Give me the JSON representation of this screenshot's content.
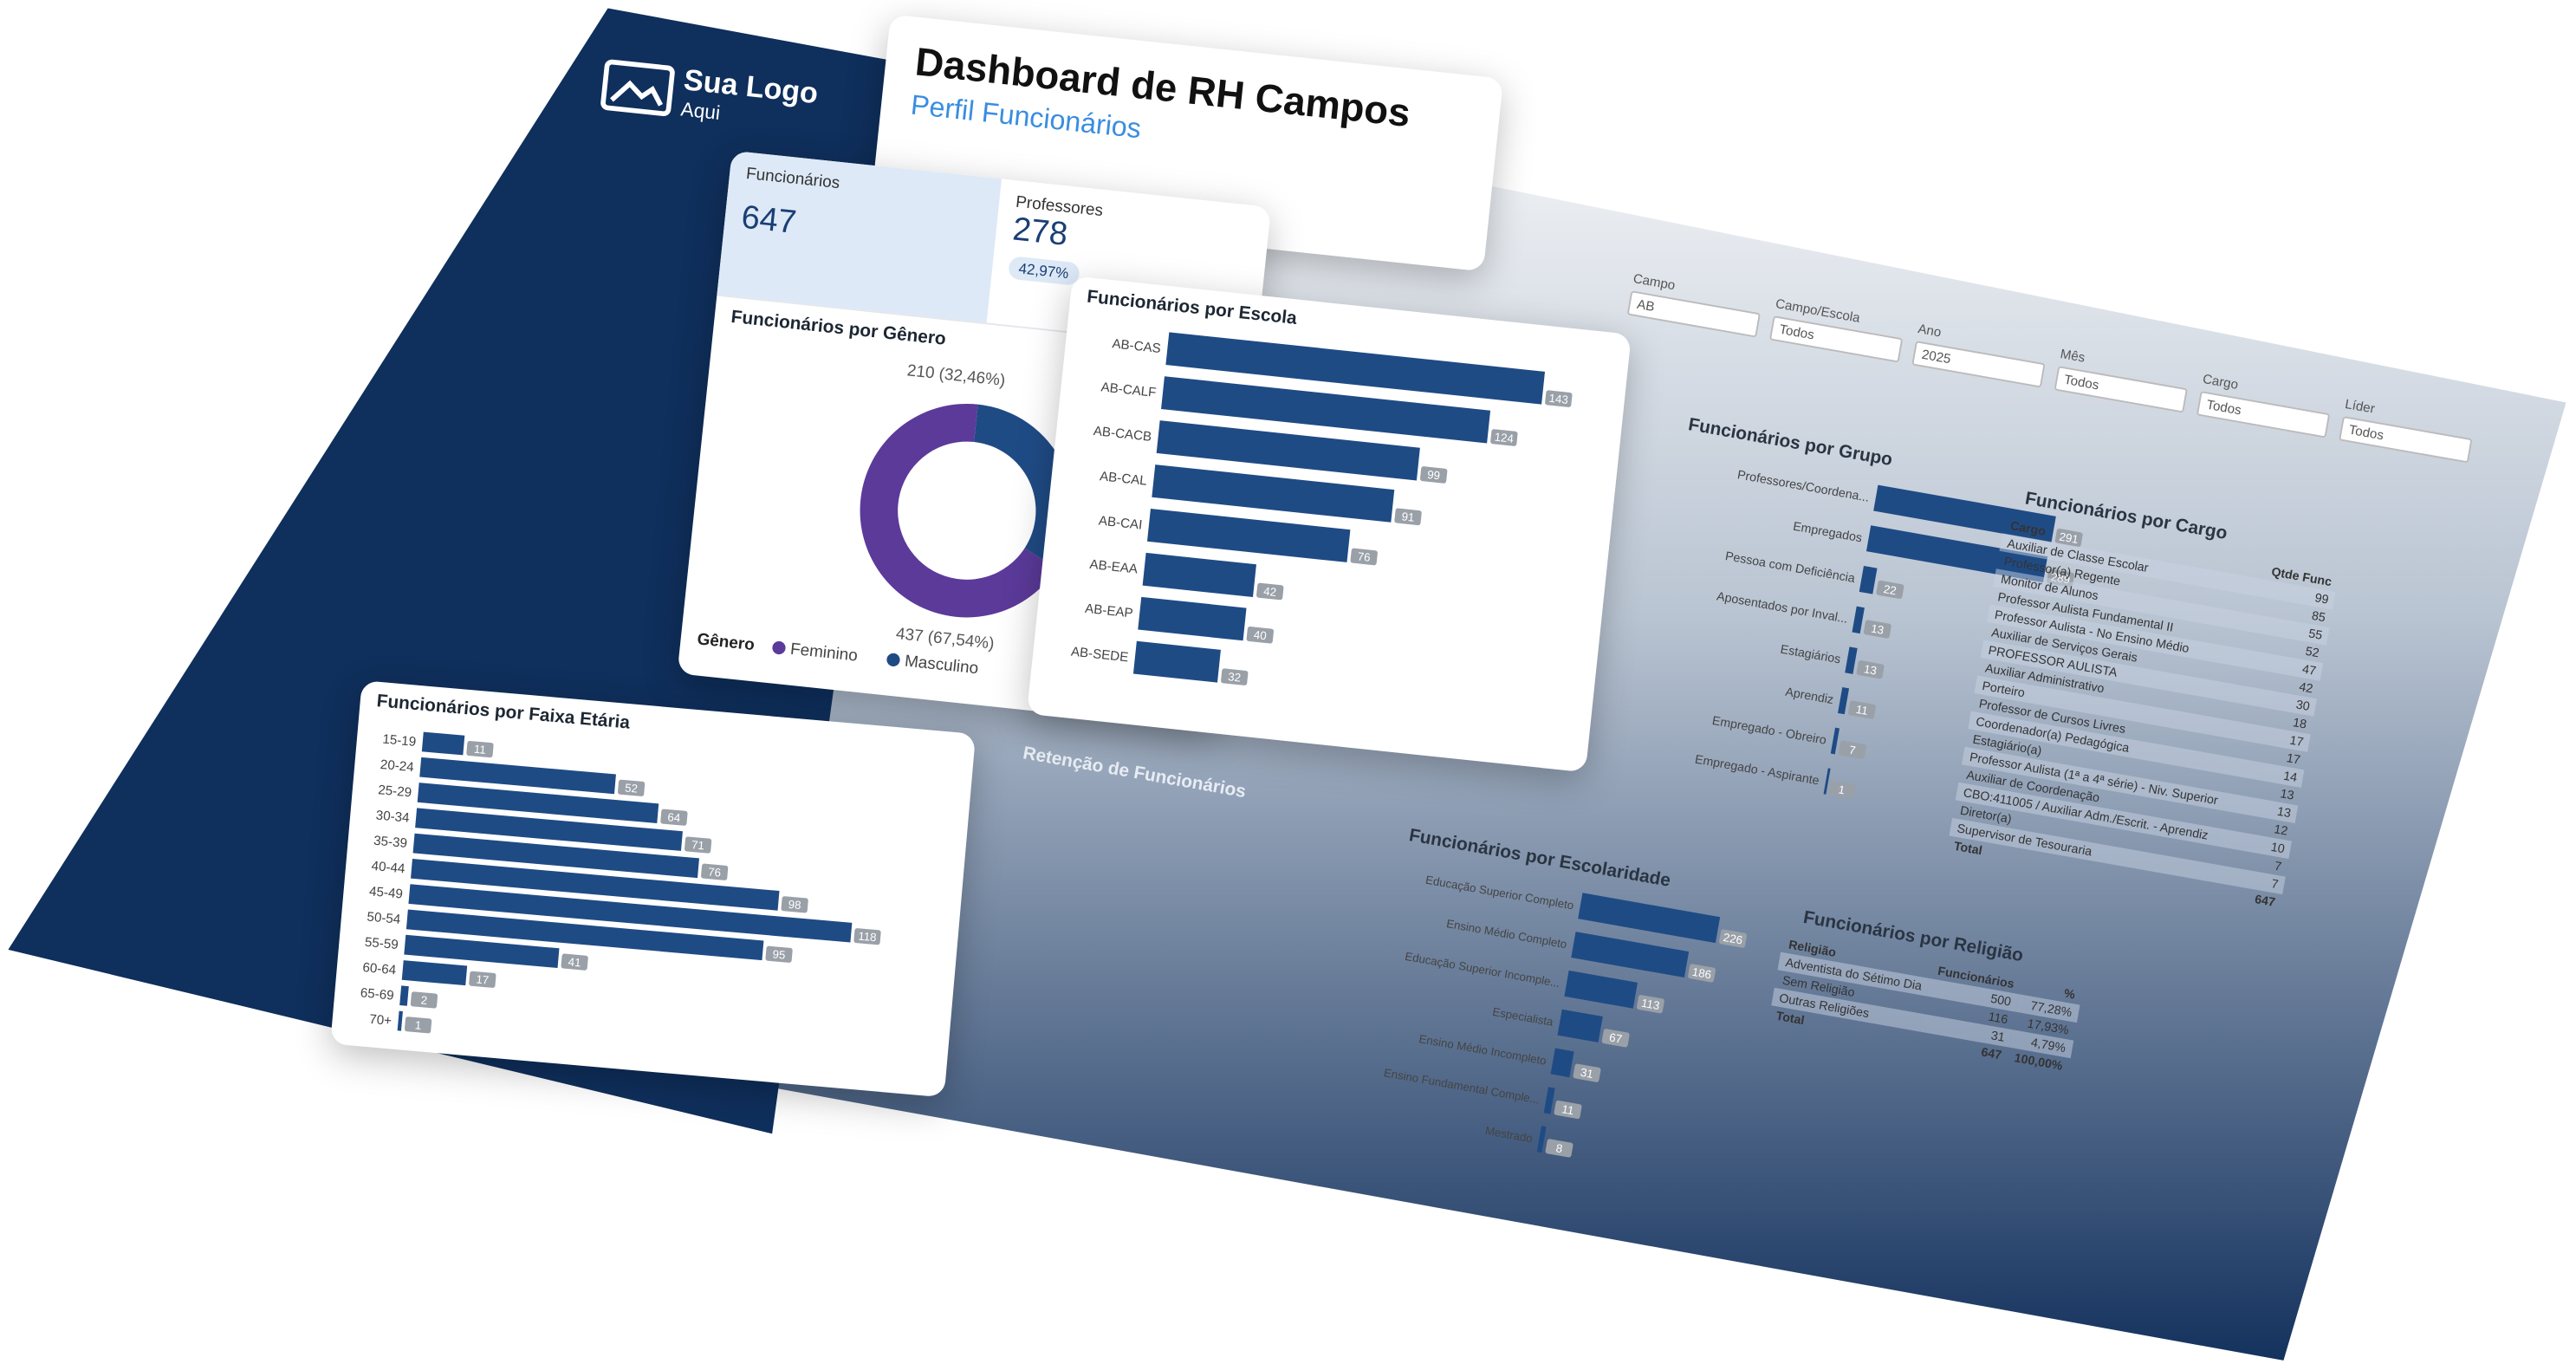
{
  "header": {
    "logo_title": "Sua Logo",
    "logo_subtitle": "Aqui",
    "title": "Dashboard de RH Campos",
    "subtitle": "Perfil Funcionários"
  },
  "kpis": [
    {
      "label": "Funcionários",
      "value": "647"
    },
    {
      "label": "Professores",
      "value": "278",
      "badge": "42,97%"
    }
  ],
  "filters": [
    {
      "label": "Campo",
      "value": "AB"
    },
    {
      "label": "Campo/Escola",
      "value": "Todos"
    },
    {
      "label": "Ano",
      "value": "2025"
    },
    {
      "label": "Mês",
      "value": "Todos"
    },
    {
      "label": "Cargo",
      "value": "Todos"
    },
    {
      "label": "Líder",
      "value": "Todos"
    }
  ],
  "genero": {
    "title": "Funcionários por Gênero",
    "legend_title": "Gênero",
    "series": [
      {
        "name": "Feminino",
        "color": "#5b3a9a",
        "value": 437,
        "value_label": "437 (67,54%)"
      },
      {
        "name": "Masculino",
        "color": "#1f4b85",
        "value": 210,
        "value_label": "210 (32,46%)"
      }
    ]
  },
  "escola": {
    "title": "Funcionários por Escola",
    "color": "#1f4b85",
    "categories": [
      "AB-CAS",
      "AB-CALF",
      "AB-CACB",
      "AB-CAL",
      "AB-CAI",
      "AB-EAA",
      "AB-EAP",
      "AB-SEDE"
    ],
    "values": [
      143,
      124,
      99,
      91,
      76,
      42,
      40,
      32
    ]
  },
  "faixa": {
    "title": "Funcionários por Faixa Etária",
    "color": "#1f4b85",
    "categories": [
      "15-19",
      "20-24",
      "25-29",
      "30-34",
      "35-39",
      "40-44",
      "45-49",
      "50-54",
      "55-59",
      "60-64",
      "65-69",
      "70+"
    ],
    "values": [
      11,
      52,
      64,
      71,
      76,
      98,
      118,
      95,
      41,
      17,
      2,
      1
    ]
  },
  "grupo": {
    "title": "Funcionários por Grupo",
    "color": "#1f4b85",
    "categories": [
      "Professores/Coordena...",
      "Empregados",
      "Pessoa com Deficiência",
      "Aposentados por Inval...",
      "Estagiários",
      "Aprendiz",
      "Empregado - Obreiro",
      "Empregado - Aspirante"
    ],
    "values": [
      291,
      289,
      22,
      13,
      13,
      11,
      7,
      1
    ]
  },
  "escolaridade": {
    "title": "Funcionários por Escolaridade",
    "color": "#1f4b85",
    "categories": [
      "Educação Superior Completo",
      "Ensino Médio Completo",
      "Educação Superior Incomple...",
      "Especialista",
      "Ensino Médio Incompleto",
      "Ensino Fundamental Comple...",
      "Mestrado"
    ],
    "values": [
      226,
      186,
      113,
      67,
      31,
      11,
      8
    ]
  },
  "retencao": {
    "title": "Retenção de Funcionários"
  },
  "cargo": {
    "title": "Funcionários por Cargo",
    "columns": [
      "Cargo",
      "Qtde Func"
    ],
    "rows": [
      [
        "Auxiliar de Classe Escolar",
        99
      ],
      [
        "Professor(a) Regente",
        85
      ],
      [
        "Monitor de Alunos",
        55
      ],
      [
        "Professor Aulista Fundamental II",
        52
      ],
      [
        "Professor Aulista - No Ensino Médio",
        47
      ],
      [
        "Auxiliar de Serviços Gerais",
        42
      ],
      [
        "PROFESSOR AULISTA",
        30
      ],
      [
        "Auxiliar Administrativo",
        18
      ],
      [
        "Porteiro",
        17
      ],
      [
        "Professor de Cursos Livres",
        17
      ],
      [
        "Coordenador(a) Pedagógica",
        14
      ],
      [
        "Estagiário(a)",
        13
      ],
      [
        "Professor Aulista (1ª a 4ª série) - Niv. Superior",
        13
      ],
      [
        "Auxiliar de Coordenação",
        12
      ],
      [
        "CBO:411005 / Auxiliar Adm./Escrit. - Aprendiz",
        10
      ],
      [
        "Diretor(a)",
        7
      ],
      [
        "Supervisor de Tesouraria",
        7
      ],
      [
        "Total",
        647
      ]
    ]
  },
  "religiao": {
    "title": "Funcionários por Religião",
    "columns": [
      "Religião",
      "Funcionários",
      "%"
    ],
    "rows": [
      [
        "Adventista do Sétimo Dia",
        500,
        "77,28%"
      ],
      [
        "Sem Religião",
        116,
        "17,93%"
      ],
      [
        "Outras Religiões",
        31,
        "4,79%"
      ],
      [
        "Total",
        647,
        "100,00%"
      ]
    ]
  }
}
